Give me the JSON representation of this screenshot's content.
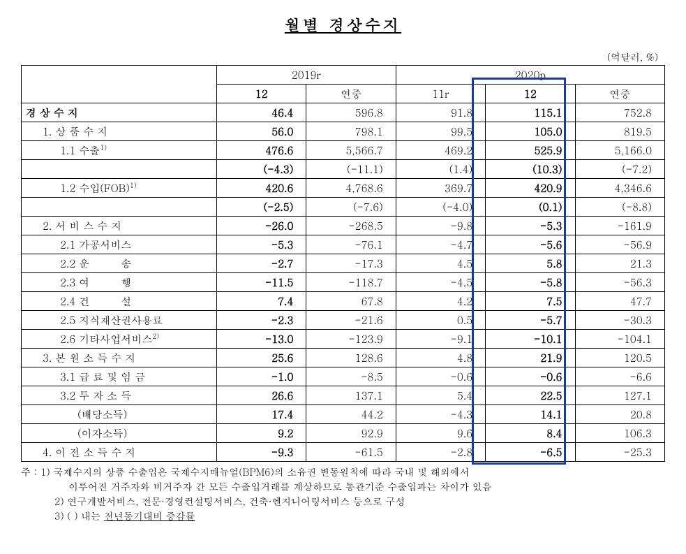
{
  "title": "월별 경상수지",
  "unit": "(억달러, %)",
  "headers": {
    "year1": "2019r",
    "year2": "2020p",
    "sub1": "12",
    "sub2": "연중",
    "sub3": "11r",
    "sub4": "12",
    "sub5": "연중"
  },
  "rows": [
    {
      "label": "경 상 수 지",
      "cls": "bold",
      "v": [
        "46.4",
        "596.8",
        "91.8",
        "115.1",
        "752.8"
      ]
    },
    {
      "label": "1. 상 품 수 지",
      "cls": "indent1",
      "v": [
        "56.0",
        "798.1",
        "99.5",
        "105.0",
        "819.5"
      ]
    },
    {
      "label": "1.1 수출",
      "sup": "1)",
      "cls": "indent2",
      "v": [
        "476.6",
        "5,566.7",
        "469.2",
        "525.9",
        "5,166.0"
      ]
    },
    {
      "label": "",
      "cls": "",
      "v": [
        "(-4.3)",
        "(-11.1)",
        "(1.4)",
        "(10.3)",
        "(-7.2)"
      ]
    },
    {
      "label": "1.2 수입(FOB)",
      "sup": "1)",
      "cls": "indent2",
      "v": [
        "420.6",
        "4,768.6",
        "369.7",
        "420.9",
        "4,346.6"
      ]
    },
    {
      "label": "",
      "cls": "",
      "v": [
        "(-2.5)",
        "(-7.6)",
        "(-4.0)",
        "(0.1)",
        "(-8.8)"
      ]
    },
    {
      "label": "2. 서 비 스 수 지",
      "cls": "indent1",
      "v": [
        "-26.0",
        "-268.5",
        "-9.8",
        "-5.3",
        "-161.9"
      ]
    },
    {
      "label": "2.1 가공서비스",
      "cls": "indent2",
      "v": [
        "-5.3",
        "-76.1",
        "-4.7",
        "-5.6",
        "-56.9"
      ]
    },
    {
      "label": "2.2 운　　　송",
      "cls": "indent2",
      "v": [
        "-2.7",
        "-17.3",
        "4.5",
        "5.8",
        "21.3"
      ]
    },
    {
      "label": "2.3 여　　　행",
      "cls": "indent2",
      "v": [
        "-11.5",
        "-118.7",
        "-4.5",
        "-5.8",
        "-56.3"
      ]
    },
    {
      "label": "2.4 건　　　설",
      "cls": "indent2",
      "v": [
        "7.4",
        "67.8",
        "4.2",
        "7.5",
        "47.7"
      ]
    },
    {
      "label": "2.5 지식재산권사용료",
      "cls": "indent2",
      "v": [
        "-2.3",
        "-21.6",
        "0.5",
        "-5.7",
        "-30.3"
      ]
    },
    {
      "label": "2.6 기타사업서비스",
      "sup": "2)",
      "cls": "indent2",
      "v": [
        "-13.0",
        "-123.9",
        "-9.1",
        "-10.1",
        "-104.1"
      ]
    },
    {
      "label": "3. 본 원 소 득 수 지",
      "cls": "indent1",
      "v": [
        "25.6",
        "128.6",
        "4.8",
        "21.9",
        "120.5"
      ]
    },
    {
      "label": "3.1 급 료 및 임 금",
      "cls": "indent2",
      "v": [
        "-1.0",
        "-8.5",
        "-0.6",
        "-0.6",
        "-6.6"
      ]
    },
    {
      "label": "3.2 투 자 소 득",
      "cls": "indent2",
      "v": [
        "26.6",
        "137.1",
        "5.4",
        "22.5",
        "127.1"
      ]
    },
    {
      "label": "(배당소득)",
      "cls": "indent3",
      "v": [
        "17.4",
        "44.2",
        "-4.3",
        "14.1",
        "20.8"
      ]
    },
    {
      "label": "(이자소득)",
      "cls": "indent3",
      "v": [
        "9.2",
        "92.9",
        "9.6",
        "8.4",
        "106.3"
      ]
    },
    {
      "label": "4. 이 전 소 득 수 지",
      "cls": "indent1",
      "v": [
        "-9.3",
        "-61.5",
        "-2.8",
        "-6.5",
        "-25.3"
      ]
    }
  ],
  "notes": {
    "prefix": "주 : ",
    "n1a": "1) 국제수지의 상품 수출입은 국제수지매뉴얼(BPM6)의 소유권 변동원칙에 따라 국내 및 해외에서",
    "n1b": "이루어진 거주자와 비거주자 간 모든 수출입거래를 계상하므로 통관기준 수출입과는 차이가 있음",
    "n2": "2) 연구개발서비스, 전문·경영컨설팅서비스, 건축·엔지니어링서비스 등으로 구성",
    "n3a": "3) (  ) 내는 ",
    "n3b": "전년동기대비 증감률"
  },
  "highlight": {
    "top_pct": 3.2,
    "left_pct": 70.0,
    "width_pct": 14.0,
    "height_pct": 96.5
  }
}
